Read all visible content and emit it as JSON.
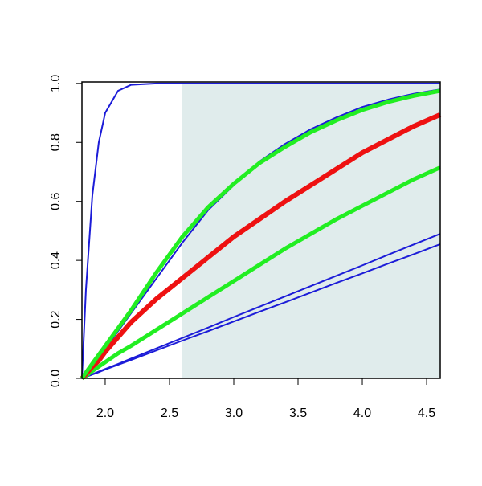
{
  "chart_data": {
    "type": "line",
    "x": [
      1.819,
      1.85,
      1.9,
      1.95,
      2.0,
      2.1,
      2.2,
      2.4,
      2.6,
      2.8,
      3.0,
      3.2,
      3.4,
      3.6,
      3.8,
      4.0,
      4.2,
      4.4,
      4.606
    ],
    "series": [
      {
        "color": "#1c1cd8",
        "width": 2,
        "values": [
          0,
          0.3,
          0.62,
          0.8,
          0.9,
          0.975,
          0.995,
          1,
          1,
          1,
          1,
          1,
          1,
          1,
          1,
          1,
          1,
          1,
          1
        ]
      },
      {
        "color": "#1c1cd8",
        "width": 2,
        "values": [
          0,
          0.015,
          0.04,
          0.07,
          0.1,
          0.16,
          0.22,
          0.34,
          0.46,
          0.57,
          0.655,
          0.735,
          0.795,
          0.845,
          0.885,
          0.92,
          0.945,
          0.965,
          0.98
        ]
      },
      {
        "color": "#1c1cd8",
        "width": 2,
        "values": [
          0,
          0.005,
          0.014,
          0.023,
          0.032,
          0.049,
          0.067,
          0.102,
          0.137,
          0.172,
          0.208,
          0.243,
          0.278,
          0.313,
          0.348,
          0.383,
          0.419,
          0.454,
          0.49
        ]
      },
      {
        "color": "#1c1cd8",
        "width": 2,
        "values": [
          0,
          0.005,
          0.013,
          0.021,
          0.03,
          0.046,
          0.062,
          0.095,
          0.128,
          0.16,
          0.193,
          0.226,
          0.258,
          0.291,
          0.324,
          0.356,
          0.389,
          0.421,
          0.455
        ]
      },
      {
        "color": "#22ee22",
        "width": 5,
        "values": [
          0,
          0.008,
          0.025,
          0.04,
          0.055,
          0.085,
          0.11,
          0.165,
          0.22,
          0.275,
          0.33,
          0.385,
          0.44,
          0.49,
          0.54,
          0.585,
          0.63,
          0.675,
          0.715
        ]
      },
      {
        "color": "#ee1111",
        "width": 6,
        "values": [
          0,
          0.015,
          0.04,
          0.06,
          0.09,
          0.14,
          0.19,
          0.27,
          0.34,
          0.41,
          0.48,
          0.54,
          0.6,
          0.655,
          0.71,
          0.765,
          0.81,
          0.855,
          0.894
        ]
      },
      {
        "color": "#22ee22",
        "width": 5,
        "values": [
          0,
          0.02,
          0.05,
          0.08,
          0.11,
          0.17,
          0.23,
          0.36,
          0.48,
          0.58,
          0.66,
          0.73,
          0.785,
          0.835,
          0.875,
          0.91,
          0.937,
          0.958,
          0.975
        ]
      }
    ],
    "shaded_x": [
      2.6,
      4.606
    ],
    "shaded_top": 1.0,
    "shaded_color": "#e0ecec",
    "xlim": [
      1.819,
      4.606
    ],
    "ylim": [
      0,
      1.005
    ],
    "xticks": [
      {
        "value": 2,
        "label": "2.0"
      },
      2.5,
      {
        "value": 3,
        "label": "3.0"
      },
      3.5,
      {
        "value": 4,
        "label": "4.0"
      },
      4.5
    ],
    "yticks": [
      {
        "value": 0,
        "label": "0.0"
      },
      0.2,
      0.4,
      0.6,
      0.8,
      {
        "value": 1,
        "label": "1.0"
      }
    ]
  }
}
